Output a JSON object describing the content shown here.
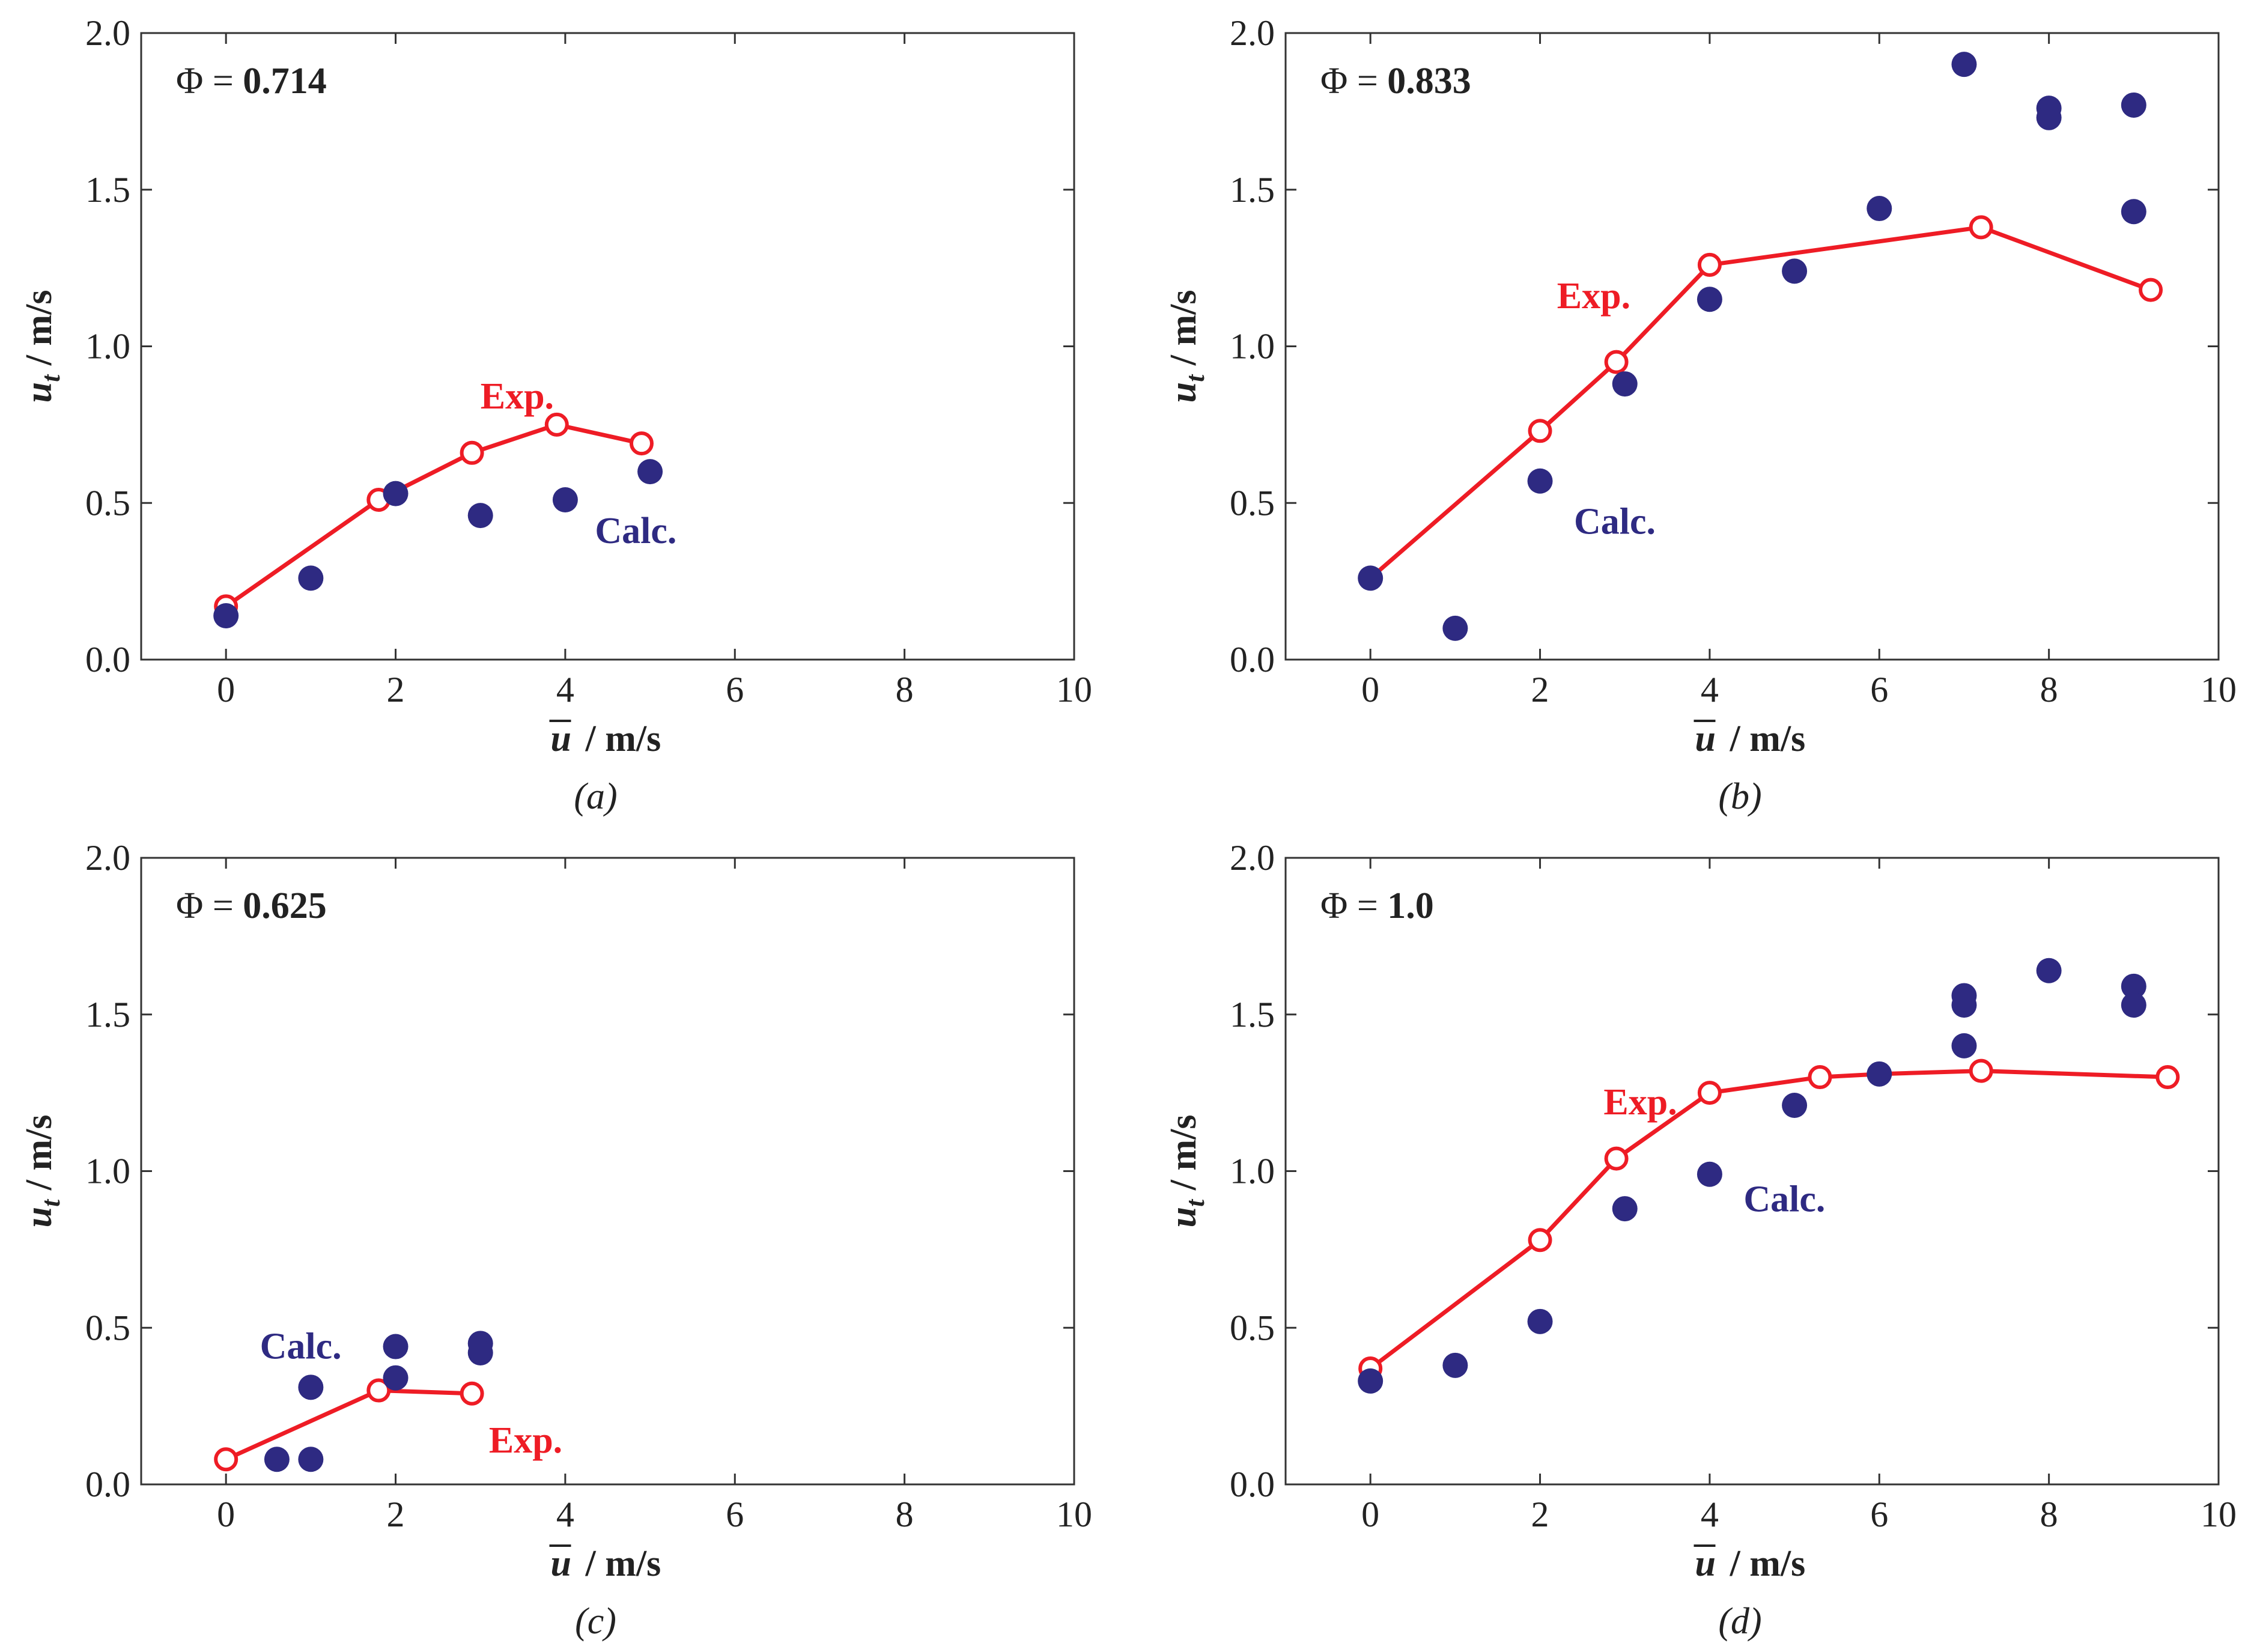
{
  "colors": {
    "exp": "#ee1c25",
    "calc": "#2e2a82",
    "axis": "#333333",
    "text": "#222222"
  },
  "chart_data": [
    {
      "type": "scatter",
      "panel": "(a)",
      "title": "Φ = 0.714",
      "phi_symbol": "Φ =",
      "phi_value": "0.714",
      "xlabel": "u / m/s",
      "xlabel_symbol": "u",
      "xlabel_unit": "/ m/s",
      "ylabel": "ut / m/s",
      "ylabel_symbol": "u",
      "ylabel_sub": "t",
      "ylabel_unit": "/ m/s",
      "xlim": [
        -1,
        10
      ],
      "ylim": [
        0,
        2.0
      ],
      "xticks": [
        0,
        2,
        4,
        6,
        8,
        10
      ],
      "xtick_labels": [
        "0",
        "2",
        "4",
        "6",
        "8",
        "10"
      ],
      "yticks": [
        0,
        0.5,
        1.0,
        1.5,
        2.0
      ],
      "ytick_labels": [
        "0.0",
        "0.5",
        "1.0",
        "1.5",
        "2.0"
      ],
      "grid": false,
      "series": [
        {
          "name": "Exp.",
          "style": "line-open-circle",
          "label_at": [
            3.0,
            0.84
          ],
          "x": [
            0.0,
            1.8,
            2.9,
            3.9,
            4.9
          ],
          "y": [
            0.17,
            0.51,
            0.66,
            0.75,
            0.69
          ]
        },
        {
          "name": "Calc.",
          "style": "filled-circle",
          "label_at": [
            4.35,
            0.41
          ],
          "x": [
            0.0,
            1.0,
            2.0,
            3.0,
            4.0,
            5.0
          ],
          "y": [
            0.14,
            0.26,
            0.53,
            0.46,
            0.51,
            0.6
          ]
        }
      ]
    },
    {
      "type": "scatter",
      "panel": "(b)",
      "title": "Φ = 0.833",
      "phi_symbol": "Φ =",
      "phi_value": "0.833",
      "xlabel": "u / m/s",
      "xlabel_symbol": "u",
      "xlabel_unit": "/ m/s",
      "ylabel": "ut / m/s",
      "ylabel_symbol": "u",
      "ylabel_sub": "t",
      "ylabel_unit": "/ m/s",
      "xlim": [
        -1,
        10
      ],
      "ylim": [
        0,
        2.0
      ],
      "xticks": [
        0,
        2,
        4,
        6,
        8,
        10
      ],
      "xtick_labels": [
        "0",
        "2",
        "4",
        "6",
        "8",
        "10"
      ],
      "yticks": [
        0,
        0.5,
        1.0,
        1.5,
        2.0
      ],
      "ytick_labels": [
        "0.0",
        "0.5",
        "1.0",
        "1.5",
        "2.0"
      ],
      "grid": false,
      "series": [
        {
          "name": "Exp.",
          "style": "line-open-circle",
          "label_at": [
            2.2,
            1.16
          ],
          "x": [
            0.0,
            2.0,
            2.9,
            4.0,
            7.2,
            9.2
          ],
          "y": [
            0.26,
            0.73,
            0.95,
            1.26,
            1.38,
            1.18
          ]
        },
        {
          "name": "Calc.",
          "style": "filled-circle",
          "label_at": [
            2.4,
            0.44
          ],
          "x": [
            0.0,
            1.0,
            2.0,
            3.0,
            4.0,
            5.0,
            6.0,
            7.0,
            8.0,
            8.0,
            9.0,
            9.0
          ],
          "y": [
            0.26,
            0.1,
            0.57,
            0.88,
            1.15,
            1.24,
            1.44,
            1.9,
            1.76,
            1.73,
            1.77,
            1.43
          ]
        }
      ]
    },
    {
      "type": "scatter",
      "panel": "(c)",
      "title": "Φ = 0.625",
      "phi_symbol": "Φ =",
      "phi_value": "0.625",
      "xlabel": "u / m/s",
      "xlabel_symbol": "u",
      "xlabel_unit": "/ m/s",
      "ylabel": "ut / m/s",
      "ylabel_symbol": "u",
      "ylabel_sub": "t",
      "ylabel_unit": "/ m/s",
      "xlim": [
        -1,
        10
      ],
      "ylim": [
        0,
        2.0
      ],
      "xticks": [
        0,
        2,
        4,
        6,
        8,
        10
      ],
      "xtick_labels": [
        "0",
        "2",
        "4",
        "6",
        "8",
        "10"
      ],
      "yticks": [
        0,
        0.5,
        1.0,
        1.5,
        2.0
      ],
      "ytick_labels": [
        "0.0",
        "0.5",
        "1.0",
        "1.5",
        "2.0"
      ],
      "grid": false,
      "series": [
        {
          "name": "Exp.",
          "style": "line-open-circle",
          "label_at": [
            3.1,
            0.14
          ],
          "x": [
            0.0,
            1.8,
            2.9
          ],
          "y": [
            0.08,
            0.3,
            0.29
          ]
        },
        {
          "name": "Calc.",
          "style": "filled-circle",
          "label_at": [
            0.4,
            0.44
          ],
          "x": [
            0.6,
            1.0,
            1.0,
            2.0,
            2.0,
            3.0,
            3.0
          ],
          "y": [
            0.08,
            0.08,
            0.31,
            0.34,
            0.44,
            0.45,
            0.42
          ]
        }
      ]
    },
    {
      "type": "scatter",
      "panel": "(d)",
      "title": "Φ = 1.0",
      "phi_symbol": "Φ =",
      "phi_value": "1.0",
      "xlabel": "u / m/s",
      "xlabel_symbol": "u",
      "xlabel_unit": "/ m/s",
      "ylabel": "ut / m/s",
      "ylabel_symbol": "u",
      "ylabel_sub": "t",
      "ylabel_unit": "/ m/s",
      "xlim": [
        -1,
        10
      ],
      "ylim": [
        0,
        2.0
      ],
      "xticks": [
        0,
        2,
        4,
        6,
        8,
        10
      ],
      "xtick_labels": [
        "0",
        "2",
        "4",
        "6",
        "8",
        "10"
      ],
      "yticks": [
        0,
        0.5,
        1.0,
        1.5,
        2.0
      ],
      "ytick_labels": [
        "0.0",
        "0.5",
        "1.0",
        "1.5",
        "2.0"
      ],
      "grid": false,
      "series": [
        {
          "name": "Exp.",
          "style": "line-open-circle",
          "label_at": [
            2.75,
            1.22
          ],
          "x": [
            0.0,
            2.0,
            2.9,
            4.0,
            5.3,
            6.0,
            7.2,
            9.4
          ],
          "y": [
            0.37,
            0.78,
            1.04,
            1.25,
            1.3,
            1.31,
            1.32,
            1.3
          ]
        },
        {
          "name": "Calc.",
          "style": "filled-circle",
          "label_at": [
            4.4,
            0.91
          ],
          "x": [
            0.0,
            1.0,
            2.0,
            3.0,
            4.0,
            5.0,
            6.0,
            7.0,
            7.0,
            7.0,
            8.0,
            9.0,
            9.0
          ],
          "y": [
            0.33,
            0.38,
            0.52,
            0.88,
            0.99,
            1.21,
            1.31,
            1.4,
            1.53,
            1.56,
            1.64,
            1.59,
            1.53
          ]
        }
      ]
    }
  ]
}
